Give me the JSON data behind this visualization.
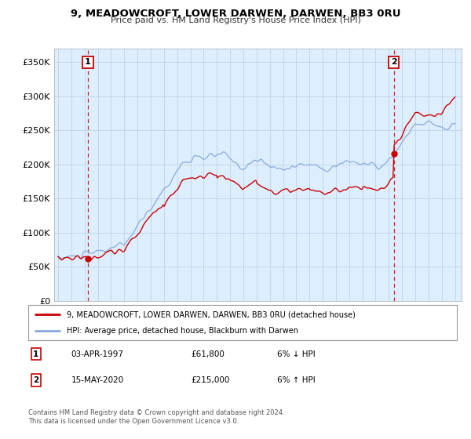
{
  "title": "9, MEADOWCROFT, LOWER DARWEN, DARWEN, BB3 0RU",
  "subtitle": "Price paid vs. HM Land Registry's House Price Index (HPI)",
  "legend_line1": "9, MEADOWCROFT, LOWER DARWEN, DARWEN, BB3 0RU (detached house)",
  "legend_line2": "HPI: Average price, detached house, Blackburn with Darwen",
  "annotation1_label": "1",
  "annotation1_date": "03-APR-1997",
  "annotation1_price": "£61,800",
  "annotation1_hpi": "6% ↓ HPI",
  "annotation2_label": "2",
  "annotation2_date": "15-MAY-2020",
  "annotation2_price": "£215,000",
  "annotation2_hpi": "6% ↑ HPI",
  "footer_line1": "Contains HM Land Registry data © Crown copyright and database right 2024.",
  "footer_line2": "This data is licensed under the Open Government Licence v3.0.",
  "sale_color": "#cc0000",
  "hpi_color": "#88aadd",
  "vline_color": "#cc0000",
  "marker1_x": 1997.25,
  "marker1_y": 61800,
  "marker2_x": 2020.38,
  "marker2_y": 215000,
  "xlim": [
    1994.7,
    2025.5
  ],
  "ylim": [
    0,
    370000
  ],
  "yticks": [
    0,
    50000,
    100000,
    150000,
    200000,
    250000,
    300000,
    350000
  ],
  "ytick_labels": [
    "£0",
    "£50K",
    "£100K",
    "£150K",
    "£200K",
    "£250K",
    "£300K",
    "£350K"
  ],
  "xticks": [
    1995,
    1996,
    1997,
    1998,
    1999,
    2000,
    2001,
    2002,
    2003,
    2004,
    2005,
    2006,
    2007,
    2008,
    2009,
    2010,
    2011,
    2012,
    2013,
    2014,
    2015,
    2016,
    2017,
    2018,
    2019,
    2020,
    2021,
    2022,
    2023,
    2024,
    2025
  ],
  "background_color": "#ffffff",
  "plot_bg_color": "#ddeeff",
  "grid_color": "#bbccdd"
}
